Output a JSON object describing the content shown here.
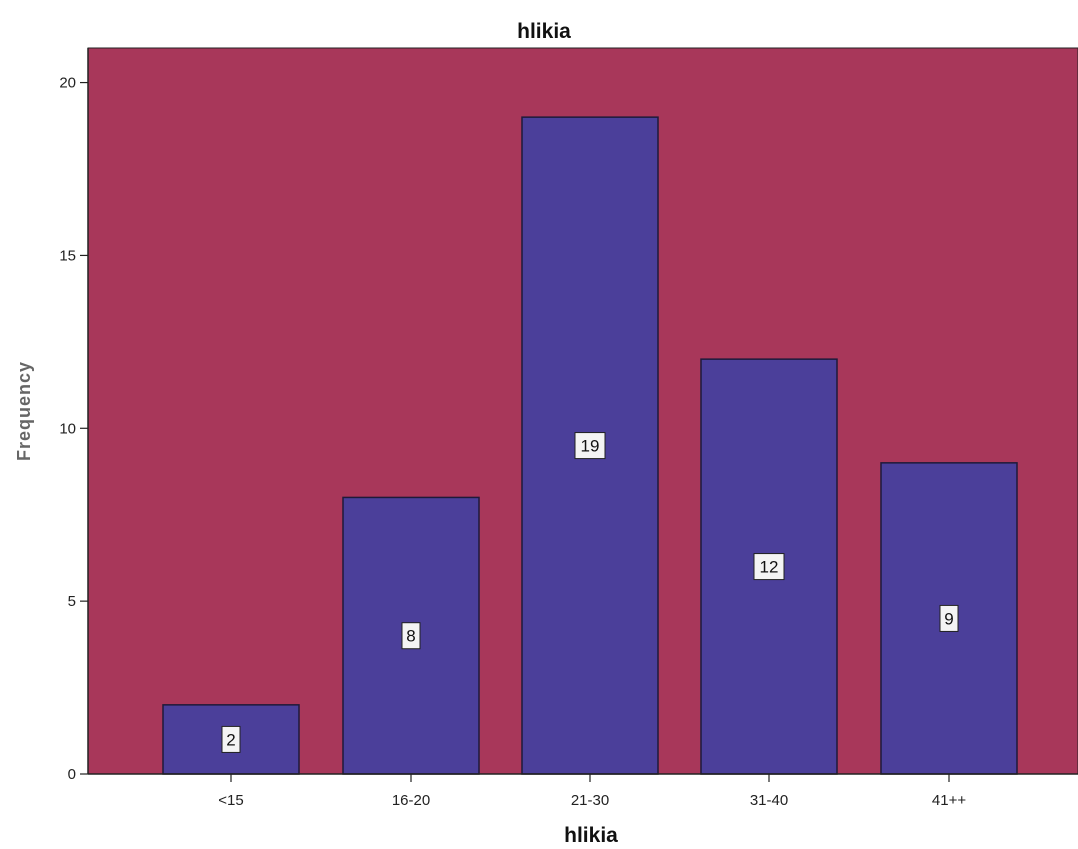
{
  "chart_data": {
    "type": "bar",
    "title": "hlikia",
    "xlabel": "hlikia",
    "ylabel": "Frequency",
    "categories": [
      "<15",
      "16-20",
      "21-30",
      "31-40",
      "41++"
    ],
    "values": [
      2,
      8,
      19,
      12,
      9
    ],
    "data_labels": [
      "2",
      "8",
      "19",
      "12",
      "9"
    ],
    "ylim": [
      0,
      21
    ],
    "yticks": [
      0,
      5,
      10,
      15,
      20
    ],
    "grid": false,
    "legend": "none",
    "colors": {
      "plot_background": "#A8375A",
      "bar_fill": "#4B3F9A",
      "bar_stroke": "#1e1a3a",
      "label_box": "#F4F4F4"
    }
  }
}
